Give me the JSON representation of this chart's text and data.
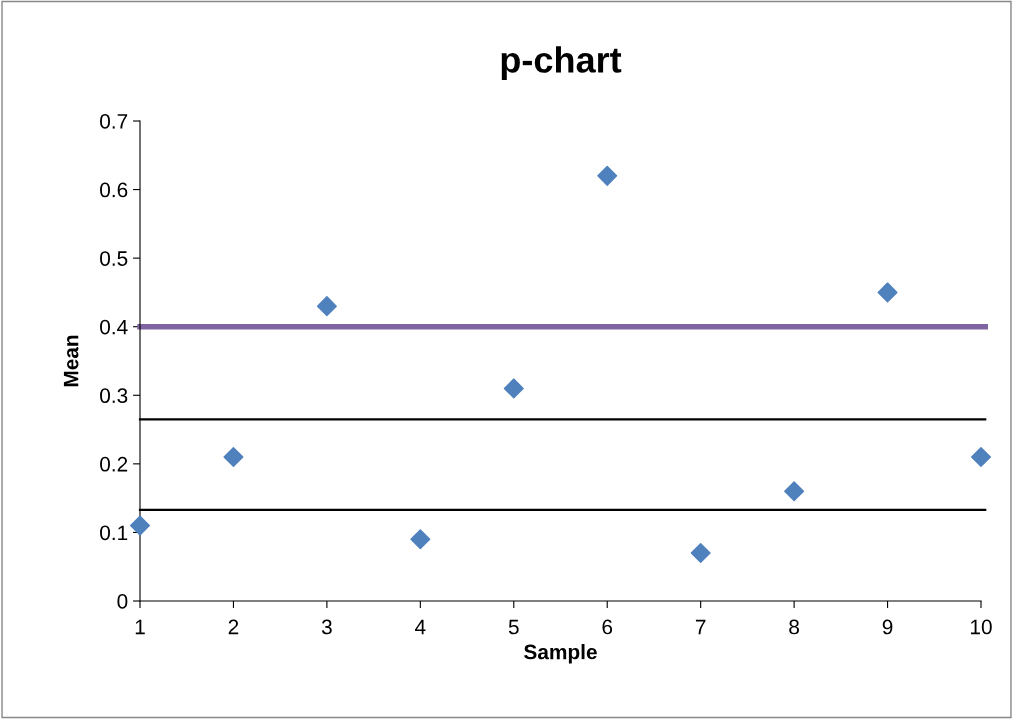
{
  "chart_data": {
    "type": "scatter",
    "title": "p-chart",
    "xlabel": "Sample",
    "ylabel": "Mean",
    "x": [
      1,
      2,
      3,
      4,
      5,
      6,
      7,
      8,
      9,
      10
    ],
    "series": [
      {
        "color": "#4f81bd",
        "values": [
          0.11,
          0.21,
          0.43,
          0.09,
          0.31,
          0.62,
          0.07,
          0.16,
          0.45,
          0.21
        ]
      }
    ],
    "xlim": [
      1,
      10
    ],
    "xticks": [
      1,
      2,
      3,
      4,
      5,
      6,
      7,
      8,
      9,
      10
    ],
    "ylim": [
      0,
      0.7
    ],
    "yticks": [
      0,
      0.1,
      0.2,
      0.3,
      0.4,
      0.5,
      0.6,
      0.7
    ],
    "ref_lines": [
      {
        "axis": "y",
        "value": 0.4,
        "color": "#8064a2",
        "line_style": "solid"
      },
      {
        "axis": "y",
        "value": 0.265,
        "color": "#000000",
        "line_style": "solid"
      },
      {
        "axis": "y",
        "value": 0.133,
        "color": "#000000",
        "line_style": "solid"
      }
    ],
    "marker": "diamond",
    "grid": false,
    "legend": false
  }
}
